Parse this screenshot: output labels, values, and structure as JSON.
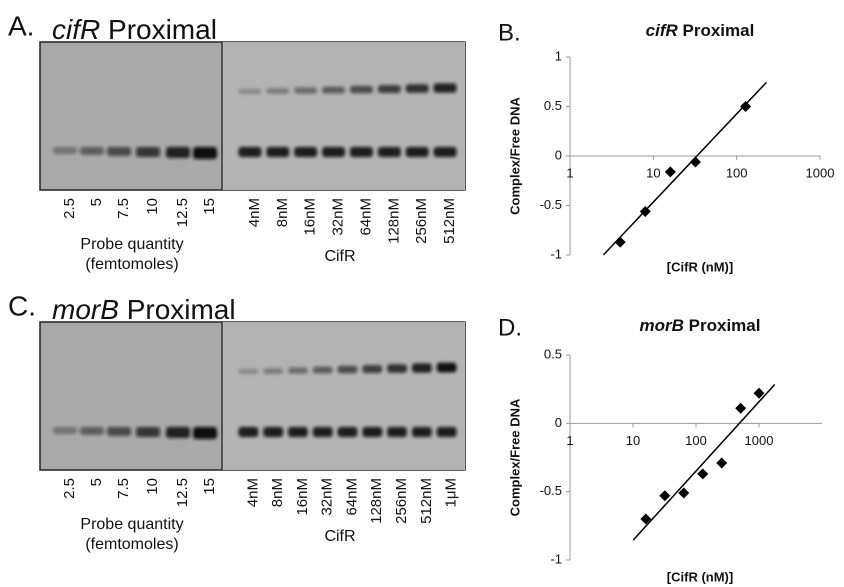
{
  "gels": [
    {
      "label": "A.",
      "title": [
        "cifR",
        "Proximal"
      ],
      "probe_lanes": [
        "2.5",
        "5",
        "7.5",
        "10",
        "12.5",
        "15"
      ],
      "probe_label": [
        "Probe quantity",
        "(femtomoles)"
      ],
      "cifr_lanes": [
        "4nM",
        "8nM",
        "16nM",
        "32nM",
        "64nM",
        "128nM",
        "256nM",
        "512nM"
      ],
      "cifr_label": "CifR"
    },
    {
      "label": "C.",
      "title": [
        "morB",
        "Proximal"
      ],
      "probe_lanes": [
        "2.5",
        "5",
        "7.5",
        "10",
        "12.5",
        "15"
      ],
      "probe_label": [
        "Probe quantity",
        "(femtomoles)"
      ],
      "cifr_lanes": [
        "4nM",
        "8nM",
        "16nM",
        "32nM",
        "64nM",
        "128nM",
        "256nM",
        "512nM",
        "1μM"
      ],
      "cifr_label": "CifR"
    }
  ],
  "chart_data": [
    {
      "type": "scatter",
      "label": "B.",
      "title": [
        "cifR",
        "Proximal"
      ],
      "x": [
        4,
        8,
        16,
        32,
        128
      ],
      "values": [
        -0.87,
        -0.56,
        -0.16,
        -0.06,
        0.5
      ],
      "xlim": [
        1,
        1000
      ],
      "xticks": [
        1,
        10,
        100,
        1000
      ],
      "xlog": true,
      "ylim": [
        -1,
        1
      ],
      "yticks": [
        -1,
        -0.5,
        0,
        0.5,
        1
      ],
      "xlabel": "[CifR (nM)]",
      "ylabel": "Complex/Free DNA",
      "color": "#000000",
      "trendline": true
    },
    {
      "type": "scatter",
      "label": "D.",
      "title": [
        "morB",
        "Proximal"
      ],
      "x": [
        16,
        32,
        64,
        128,
        256,
        512,
        1000
      ],
      "values": [
        -0.7,
        -0.53,
        -0.51,
        -0.37,
        -0.29,
        0.11,
        0.22
      ],
      "xlim": [
        1,
        10000
      ],
      "xticks": [
        1,
        10,
        100,
        1000
      ],
      "xlog": true,
      "ylim": [
        -1,
        0.5
      ],
      "yticks": [
        -1,
        -0.5,
        0,
        0.5
      ],
      "xlabel": "[CifR (nM)]",
      "ylabel": "Complex/Free DNA",
      "color": "#000000",
      "trendline": true
    }
  ]
}
